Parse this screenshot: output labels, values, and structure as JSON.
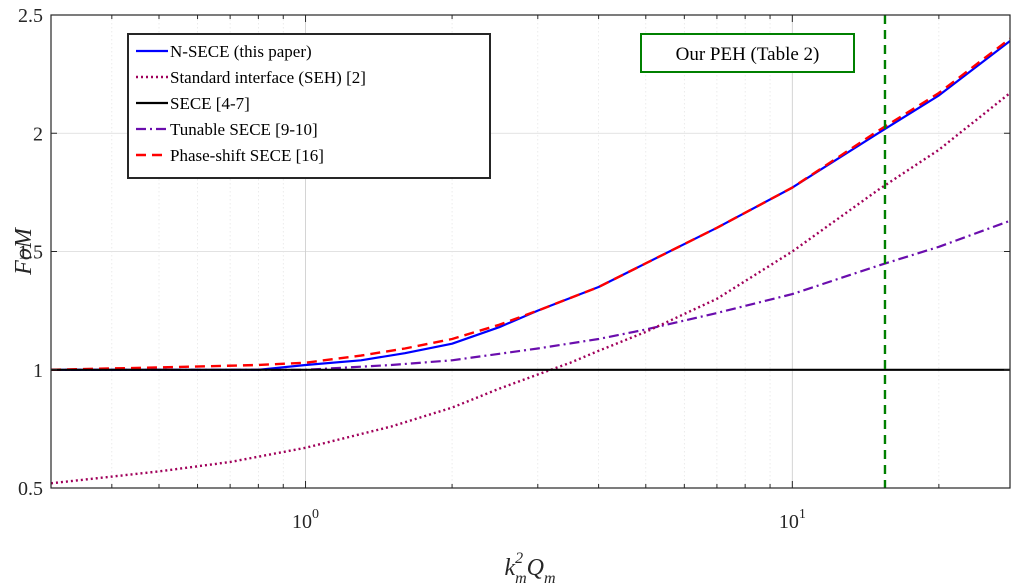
{
  "chart_data": {
    "type": "line",
    "x_scale": "log",
    "xlim": [
      0.3,
      28
    ],
    "ylim": [
      0.5,
      2.5
    ],
    "grid": true,
    "ylabel": "FoM",
    "xlabel": {
      "base": "k",
      "base_sup": "2",
      "base_sub": "m",
      "tail": "Q",
      "tail_sub": "m"
    },
    "x_ticks": [
      {
        "base": "10",
        "exp": "0",
        "value": 1
      },
      {
        "base": "10",
        "exp": "1",
        "value": 10
      }
    ],
    "y_ticks": [
      "0.5",
      "1",
      "1.5",
      "2",
      "2.5"
    ],
    "y_tick_values": [
      0.5,
      1,
      1.5,
      2,
      2.5
    ],
    "legend_position": "top-left",
    "series": [
      {
        "name": "N-SECE (this paper)",
        "color": "#0000ff",
        "style": "solid",
        "x": [
          0.3,
          0.5,
          0.8,
          1.0,
          1.3,
          1.6,
          2.0,
          2.5,
          3.0,
          4.0,
          5.0,
          7.0,
          10.0,
          15.0,
          20.0,
          28.0
        ],
        "y": [
          1.0,
          1.0,
          1.0,
          1.02,
          1.04,
          1.07,
          1.11,
          1.18,
          1.25,
          1.35,
          1.45,
          1.6,
          1.77,
          2.0,
          2.16,
          2.39
        ]
      },
      {
        "name": "Standard interface (SEH) [2]",
        "color": "#a0005a",
        "style": "dotted",
        "x": [
          0.3,
          0.5,
          0.7,
          1.0,
          1.5,
          2.0,
          2.5,
          3.0,
          3.5,
          4.0,
          5.0,
          7.0,
          10.0,
          15.0,
          20.0,
          28.0
        ],
        "y": [
          0.52,
          0.57,
          0.61,
          0.67,
          0.76,
          0.84,
          0.92,
          0.98,
          1.03,
          1.08,
          1.16,
          1.3,
          1.5,
          1.76,
          1.93,
          2.17
        ]
      },
      {
        "name": "SECE [4-7]",
        "color": "#000000",
        "style": "solid",
        "x": [
          0.3,
          28.0
        ],
        "y": [
          1.0,
          1.0
        ]
      },
      {
        "name": "Tunable SECE [9-10]",
        "color": "#6a0dad",
        "style": "dashdot",
        "x": [
          0.3,
          0.5,
          1.0,
          1.5,
          2.0,
          3.0,
          4.0,
          5.0,
          7.0,
          10.0,
          15.0,
          20.0,
          28.0
        ],
        "y": [
          1.0,
          1.0,
          1.0,
          1.02,
          1.04,
          1.09,
          1.13,
          1.17,
          1.24,
          1.32,
          1.44,
          1.52,
          1.63
        ]
      },
      {
        "name": "Phase-shift SECE [16]",
        "color": "#ff0000",
        "style": "dashed",
        "x": [
          0.3,
          0.5,
          0.8,
          1.0,
          1.3,
          1.6,
          2.0,
          2.5,
          3.0,
          4.0,
          5.0,
          7.0,
          10.0,
          15.0,
          20.0,
          28.0
        ],
        "y": [
          1.0,
          1.01,
          1.02,
          1.03,
          1.06,
          1.09,
          1.13,
          1.19,
          1.25,
          1.35,
          1.45,
          1.6,
          1.77,
          2.01,
          2.17,
          2.4
        ]
      }
    ],
    "annotations": [
      {
        "text": "Our PEH (Table 2)",
        "x": 15.5,
        "color": "#008000",
        "style": "dashed-vertical-line"
      }
    ]
  }
}
